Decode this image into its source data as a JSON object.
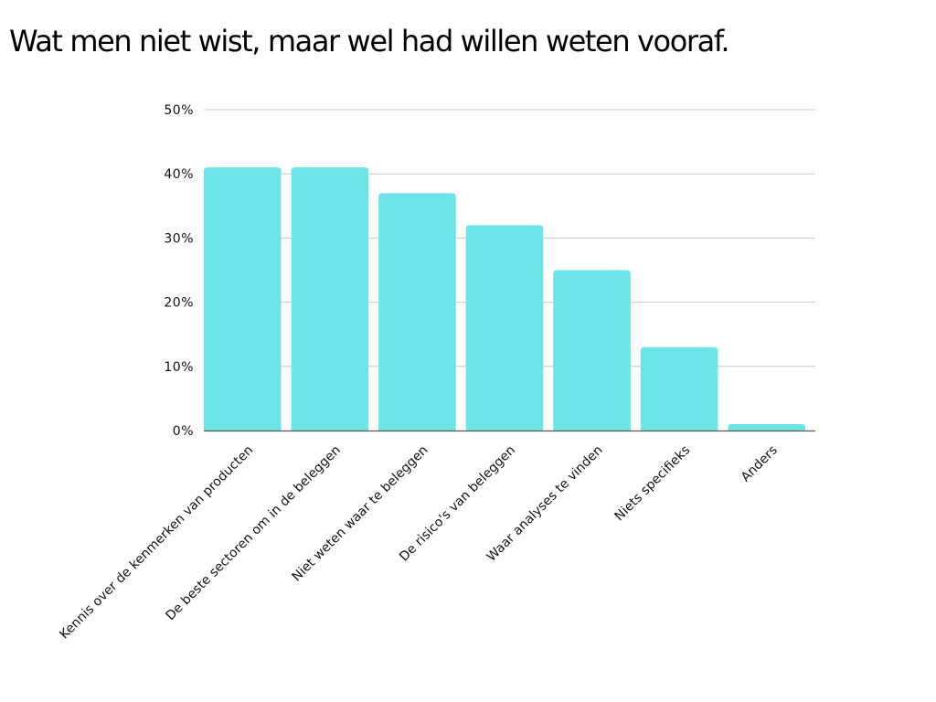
{
  "chart_data": {
    "type": "bar",
    "title": "Wat men niet wist, maar wel had willen weten vooraf.",
    "categories": [
      "Kennis over de kenmerken van producten",
      "De beste sectoren om in de beleggen",
      "Niet weten waar te beleggen",
      "De risico's van beleggen",
      "Waar analyses te vinden",
      "Niets specifieks",
      "Anders"
    ],
    "values": [
      41,
      41,
      37,
      32,
      25,
      13,
      1
    ],
    "ylim": [
      0,
      50
    ],
    "yticks": [
      "0%",
      "10%",
      "20%",
      "30%",
      "40%",
      "50%"
    ],
    "xlabel": "",
    "ylabel": "",
    "grid": true,
    "bar_color": "#6ce5e8",
    "grid_color": "#c8c8c8",
    "axis_color": "#555555"
  }
}
